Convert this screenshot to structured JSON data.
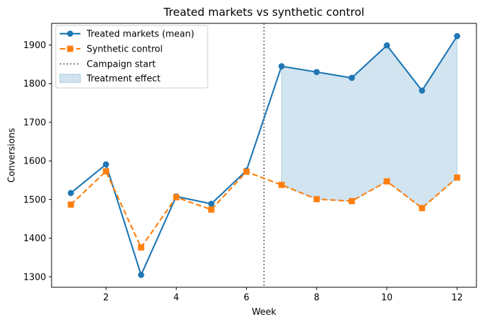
{
  "chart_data": {
    "type": "line",
    "title": "Treated markets vs synthetic control",
    "xlabel": "Week",
    "ylabel": "Conversions",
    "x": [
      1,
      2,
      3,
      4,
      5,
      6,
      7,
      8,
      9,
      10,
      11,
      12
    ],
    "xlim": [
      0.45,
      12.55
    ],
    "ylim": [
      1273,
      1956
    ],
    "xticks": [
      2,
      4,
      6,
      8,
      10,
      12
    ],
    "yticks": [
      1300,
      1400,
      1500,
      1600,
      1700,
      1800,
      1900
    ],
    "grid": false,
    "legend_position": "upper-left",
    "series": [
      {
        "name": "Treated markets (mean)",
        "color": "#1f77b4",
        "marker": "circle",
        "linestyle": "solid",
        "values": [
          1517,
          1591,
          1305,
          1508,
          1489,
          1575,
          1845,
          1830,
          1815,
          1899,
          1782,
          1923
        ]
      },
      {
        "name": "Synthetic control",
        "color": "#ff7f0e",
        "marker": "square",
        "linestyle": "dashed",
        "values": [
          1487,
          1573,
          1376,
          1506,
          1474,
          1572,
          1538,
          1501,
          1496,
          1547,
          1478,
          1557
        ]
      }
    ],
    "vline": {
      "name": "Campaign start",
      "x": 6.5,
      "color": "#555555",
      "linestyle": "dotted"
    },
    "fill": {
      "name": "Treatment effect",
      "x_from": 7,
      "x_to": 12,
      "color": "#1f77b4",
      "opacity": 0.2
    }
  }
}
